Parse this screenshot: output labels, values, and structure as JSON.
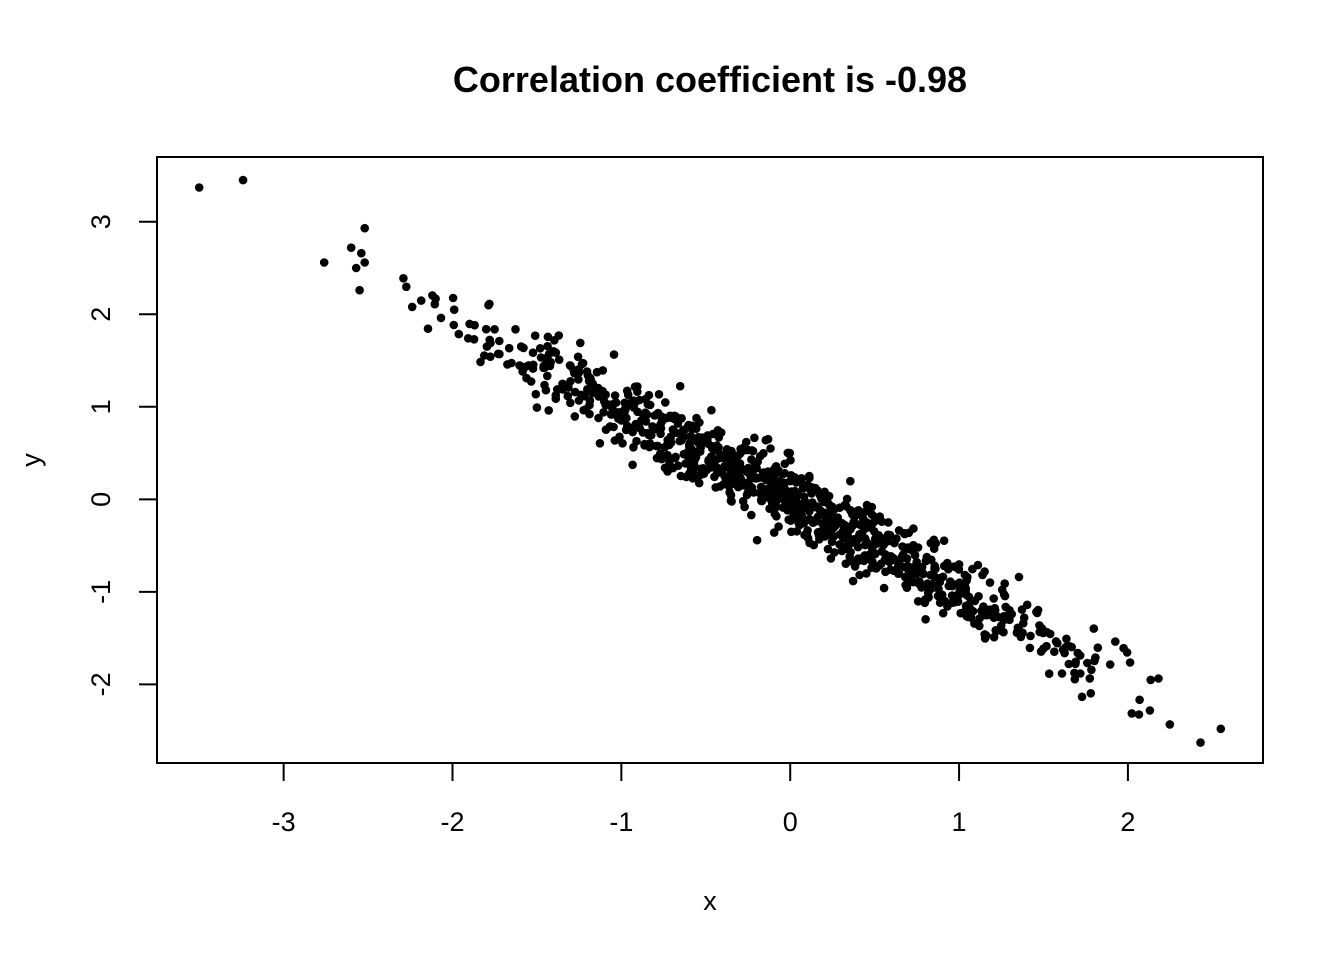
{
  "chart_data": {
    "type": "scatter",
    "title": "Correlation coefficient is -0.98",
    "xlabel": "x",
    "ylabel": "y",
    "xlim": [
      -3.75,
      2.8
    ],
    "ylim": [
      -2.85,
      3.7
    ],
    "x_ticks": [
      -3,
      -2,
      -1,
      0,
      1,
      2
    ],
    "x_tick_labels": [
      "-3",
      "-2",
      "-1",
      "0",
      "1",
      "2"
    ],
    "y_ticks": [
      -2,
      -1,
      0,
      1,
      2,
      3
    ],
    "y_tick_labels": [
      "-2",
      "-1",
      "0",
      "1",
      "2",
      "3"
    ],
    "grid": false,
    "marker_color": "#000000",
    "n_points": 1000,
    "correlation": -0.98,
    "outlier_points": [
      {
        "x": -3.5,
        "y": 3.37
      },
      {
        "x": -3.24,
        "y": 3.45
      },
      {
        "x": -2.76,
        "y": 2.56
      },
      {
        "x": -2.6,
        "y": 2.72
      },
      {
        "x": -2.57,
        "y": 2.5
      },
      {
        "x": -2.55,
        "y": 2.26
      },
      {
        "x": -2.54,
        "y": 2.66
      },
      {
        "x": -2.52,
        "y": 2.93
      },
      {
        "x": -2.52,
        "y": 2.56
      },
      {
        "x": 2.43,
        "y": -2.63
      },
      {
        "x": 2.55,
        "y": -2.48
      }
    ]
  }
}
